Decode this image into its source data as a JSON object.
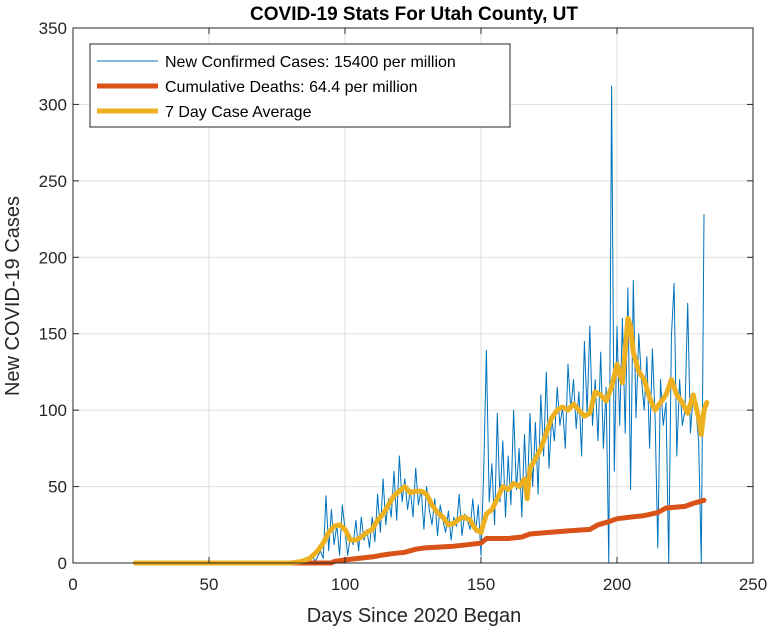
{
  "chart_data": {
    "type": "line",
    "title": "COVID-19 Stats For Utah County, UT",
    "xlabel": "Days Since 2020 Began",
    "ylabel": "New COVID-19 Cases",
    "xlim": [
      0,
      250
    ],
    "ylim": [
      0,
      350
    ],
    "xticks": [
      0,
      50,
      100,
      150,
      200,
      250
    ],
    "yticks": [
      0,
      50,
      100,
      150,
      200,
      250,
      300,
      350
    ],
    "grid": true,
    "legend_position": "top-left",
    "series": [
      {
        "name": "New Confirmed Cases: 15400 per million",
        "color": "#0072BD",
        "style": "thin",
        "points": [
          [
            23,
            0
          ],
          [
            30,
            0
          ],
          [
            40,
            0
          ],
          [
            50,
            0
          ],
          [
            60,
            0
          ],
          [
            70,
            0
          ],
          [
            80,
            0
          ],
          [
            84,
            2
          ],
          [
            86,
            0
          ],
          [
            88,
            5
          ],
          [
            89,
            1
          ],
          [
            91,
            8
          ],
          [
            92,
            3
          ],
          [
            93,
            44
          ],
          [
            94,
            8
          ],
          [
            95,
            35
          ],
          [
            96,
            12
          ],
          [
            97,
            25
          ],
          [
            98,
            5
          ],
          [
            99,
            38
          ],
          [
            100,
            22
          ],
          [
            101,
            5
          ],
          [
            102,
            18
          ],
          [
            103,
            12
          ],
          [
            104,
            28
          ],
          [
            105,
            8
          ],
          [
            106,
            30
          ],
          [
            107,
            15
          ],
          [
            108,
            22
          ],
          [
            109,
            10
          ],
          [
            110,
            30
          ],
          [
            111,
            14
          ],
          [
            112,
            45
          ],
          [
            113,
            20
          ],
          [
            114,
            55
          ],
          [
            115,
            25
          ],
          [
            116,
            42
          ],
          [
            117,
            30
          ],
          [
            118,
            60
          ],
          [
            119,
            28
          ],
          [
            120,
            70
          ],
          [
            121,
            40
          ],
          [
            122,
            55
          ],
          [
            123,
            35
          ],
          [
            124,
            48
          ],
          [
            125,
            30
          ],
          [
            126,
            62
          ],
          [
            127,
            38
          ],
          [
            128,
            48
          ],
          [
            129,
            22
          ],
          [
            130,
            50
          ],
          [
            131,
            35
          ],
          [
            132,
            25
          ],
          [
            133,
            42
          ],
          [
            134,
            18
          ],
          [
            135,
            38
          ],
          [
            136,
            28
          ],
          [
            137,
            20
          ],
          [
            138,
            34
          ],
          [
            139,
            15
          ],
          [
            140,
            30
          ],
          [
            141,
            24
          ],
          [
            142,
            45
          ],
          [
            143,
            18
          ],
          [
            144,
            32
          ],
          [
            145,
            28
          ],
          [
            146,
            22
          ],
          [
            147,
            42
          ],
          [
            148,
            20
          ],
          [
            149,
            38
          ],
          [
            150,
            5
          ],
          [
            151,
            60
          ],
          [
            152,
            139
          ],
          [
            153,
            40
          ],
          [
            154,
            65
          ],
          [
            155,
            25
          ],
          [
            156,
            98
          ],
          [
            157,
            40
          ],
          [
            158,
            80
          ],
          [
            159,
            30
          ],
          [
            160,
            70
          ],
          [
            161,
            38
          ],
          [
            162,
            100
          ],
          [
            163,
            48
          ],
          [
            164,
            75
          ],
          [
            165,
            30
          ],
          [
            166,
            84
          ],
          [
            167,
            42
          ],
          [
            168,
            98
          ],
          [
            169,
            50
          ],
          [
            170,
            92
          ],
          [
            171,
            45
          ],
          [
            172,
            110
          ],
          [
            173,
            70
          ],
          [
            174,
            125
          ],
          [
            175,
            62
          ],
          [
            176,
            95
          ],
          [
            177,
            80
          ],
          [
            178,
            115
          ],
          [
            179,
            90
          ],
          [
            180,
            102
          ],
          [
            181,
            75
          ],
          [
            182,
            130
          ],
          [
            183,
            100
          ],
          [
            184,
            120
          ],
          [
            185,
            88
          ],
          [
            186,
            112
          ],
          [
            187,
            70
          ],
          [
            188,
            145
          ],
          [
            189,
            98
          ],
          [
            190,
            155
          ],
          [
            191,
            90
          ],
          [
            192,
            120
          ],
          [
            193,
            80
          ],
          [
            194,
            138
          ],
          [
            195,
            75
          ],
          [
            196,
            115
          ],
          [
            197,
            0
          ],
          [
            198,
            312
          ],
          [
            199,
            60
          ],
          [
            200,
            155
          ],
          [
            201,
            90
          ],
          [
            202,
            160
          ],
          [
            203,
            85
          ],
          [
            204,
            180
          ],
          [
            205,
            48
          ],
          [
            206,
            185
          ],
          [
            207,
            95
          ],
          [
            208,
            150
          ],
          [
            209,
            120
          ],
          [
            210,
            100
          ],
          [
            211,
            135
          ],
          [
            212,
            75
          ],
          [
            213,
            140
          ],
          [
            214,
            95
          ],
          [
            215,
            10
          ],
          [
            216,
            120
          ],
          [
            217,
            90
          ],
          [
            218,
            105
          ],
          [
            219,
            0
          ],
          [
            220,
            148
          ],
          [
            221,
            183
          ],
          [
            222,
            70
          ],
          [
            223,
            120
          ],
          [
            224,
            90
          ],
          [
            225,
            100
          ],
          [
            226,
            170
          ],
          [
            227,
            85
          ],
          [
            228,
            110
          ],
          [
            229,
            100
          ],
          [
            230,
            80
          ],
          [
            231,
            0
          ],
          [
            232,
            228
          ]
        ]
      },
      {
        "name": "Cumulative Deaths: 64.4 per million",
        "color": "#D95319",
        "style": "thick",
        "points": [
          [
            23,
            0
          ],
          [
            80,
            0
          ],
          [
            95,
            0
          ],
          [
            96,
            1
          ],
          [
            100,
            2
          ],
          [
            105,
            3
          ],
          [
            110,
            4
          ],
          [
            113,
            5
          ],
          [
            117,
            6
          ],
          [
            122,
            7
          ],
          [
            126,
            9
          ],
          [
            130,
            10
          ],
          [
            140,
            11
          ],
          [
            145,
            12
          ],
          [
            150,
            13
          ],
          [
            152,
            16
          ],
          [
            160,
            16
          ],
          [
            165,
            17
          ],
          [
            168,
            19
          ],
          [
            175,
            20
          ],
          [
            182,
            21
          ],
          [
            190,
            22
          ],
          [
            193,
            25
          ],
          [
            197,
            27
          ],
          [
            200,
            29
          ],
          [
            205,
            30
          ],
          [
            210,
            31
          ],
          [
            215,
            33
          ],
          [
            218,
            36
          ],
          [
            225,
            37
          ],
          [
            228,
            39
          ],
          [
            232,
            41
          ]
        ]
      },
      {
        "name": "7 Day Case Average",
        "color": "#EDB120",
        "style": "thick",
        "points": [
          [
            23,
            0
          ],
          [
            30,
            0
          ],
          [
            40,
            0
          ],
          [
            50,
            0
          ],
          [
            60,
            0
          ],
          [
            70,
            0
          ],
          [
            80,
            0
          ],
          [
            84,
            1
          ],
          [
            87,
            3
          ],
          [
            90,
            8
          ],
          [
            92,
            13
          ],
          [
            94,
            20
          ],
          [
            96,
            24
          ],
          [
            98,
            25
          ],
          [
            100,
            22
          ],
          [
            102,
            15
          ],
          [
            104,
            15
          ],
          [
            106,
            17
          ],
          [
            108,
            20
          ],
          [
            110,
            22
          ],
          [
            112,
            28
          ],
          [
            114,
            32
          ],
          [
            116,
            38
          ],
          [
            118,
            44
          ],
          [
            120,
            47
          ],
          [
            122,
            50
          ],
          [
            124,
            46
          ],
          [
            126,
            47
          ],
          [
            128,
            47
          ],
          [
            130,
            45
          ],
          [
            132,
            38
          ],
          [
            134,
            33
          ],
          [
            136,
            30
          ],
          [
            138,
            25
          ],
          [
            140,
            26
          ],
          [
            142,
            29
          ],
          [
            144,
            30
          ],
          [
            146,
            28
          ],
          [
            148,
            22
          ],
          [
            150,
            20
          ],
          [
            152,
            32
          ],
          [
            154,
            35
          ],
          [
            156,
            42
          ],
          [
            158,
            50
          ],
          [
            160,
            48
          ],
          [
            162,
            52
          ],
          [
            164,
            50
          ],
          [
            166,
            55
          ],
          [
            167,
            42
          ],
          [
            168,
            62
          ],
          [
            170,
            68
          ],
          [
            172,
            75
          ],
          [
            174,
            85
          ],
          [
            176,
            95
          ],
          [
            178,
            100
          ],
          [
            180,
            102
          ],
          [
            182,
            100
          ],
          [
            184,
            104
          ],
          [
            186,
            100
          ],
          [
            188,
            96
          ],
          [
            190,
            98
          ],
          [
            192,
            112
          ],
          [
            194,
            110
          ],
          [
            196,
            106
          ],
          [
            198,
            115
          ],
          [
            200,
            130
          ],
          [
            202,
            118
          ],
          [
            204,
            160
          ],
          [
            205,
            155
          ],
          [
            206,
            138
          ],
          [
            208,
            125
          ],
          [
            210,
            120
          ],
          [
            212,
            108
          ],
          [
            214,
            100
          ],
          [
            216,
            105
          ],
          [
            218,
            110
          ],
          [
            220,
            120
          ],
          [
            222,
            110
          ],
          [
            224,
            105
          ],
          [
            226,
            98
          ],
          [
            228,
            110
          ],
          [
            230,
            95
          ],
          [
            231,
            84
          ],
          [
            232,
            100
          ],
          [
            233,
            105
          ]
        ]
      }
    ]
  }
}
